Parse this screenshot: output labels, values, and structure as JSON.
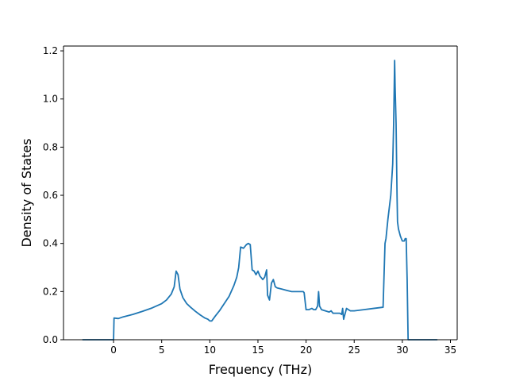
{
  "chart_data": {
    "type": "line",
    "title": "",
    "xlabel": "Frequency (THz)",
    "ylabel": "Density of States",
    "xlim": [
      -5.2,
      35.7
    ],
    "ylim": [
      0,
      1.22
    ],
    "x_ticks": [
      0,
      5,
      10,
      15,
      20,
      25,
      30,
      35
    ],
    "x_tick_labels": [
      "0",
      "5",
      "10",
      "15",
      "20",
      "25",
      "30",
      "35"
    ],
    "y_ticks": [
      0.0,
      0.2,
      0.4,
      0.6,
      0.8,
      1.0,
      1.2
    ],
    "y_tick_labels": [
      "0.0",
      "0.2",
      "0.4",
      "0.6",
      "0.8",
      "1.0",
      "1.2"
    ],
    "grid": false,
    "legend": "none",
    "line_color": "#1f77b4",
    "series": [
      {
        "x": [
          -3.2,
          0.0,
          0.05,
          0.5,
          1.0,
          2.0,
          3.0,
          4.0,
          5.0,
          5.5,
          6.0,
          6.3,
          6.5,
          6.7,
          6.9,
          7.2,
          7.6,
          8.0,
          8.5,
          9.0,
          9.5,
          9.8,
          10.0,
          10.2,
          10.6,
          11.0,
          11.5,
          12.0,
          12.5,
          12.8,
          13.0,
          13.2,
          13.5,
          13.8,
          14.0,
          14.2,
          14.4,
          14.6,
          14.8,
          15.0,
          15.2,
          15.5,
          15.7,
          15.9,
          16.0,
          16.2,
          16.4,
          16.6,
          16.8,
          17.0,
          17.5,
          18.0,
          18.5,
          19.0,
          19.5,
          19.7,
          19.8,
          20.0,
          20.3,
          20.6,
          20.8,
          21.0,
          21.2,
          21.3,
          21.4,
          21.6,
          22.0,
          22.4,
          22.6,
          22.8,
          23.0,
          23.2,
          23.5,
          23.7,
          23.8,
          23.9,
          24.0,
          24.2,
          24.4,
          24.6,
          24.8,
          25.0,
          26.0,
          27.0,
          28.0,
          28.2,
          28.3,
          28.5,
          28.8,
          29.0,
          29.1,
          29.2,
          29.25,
          29.35,
          29.45,
          29.5,
          29.6,
          29.8,
          30.0,
          30.2,
          30.3,
          30.4,
          30.5,
          30.6,
          31.0,
          33.6
        ],
        "y": [
          0.0,
          0.0,
          0.09,
          0.088,
          0.095,
          0.105,
          0.118,
          0.132,
          0.15,
          0.165,
          0.19,
          0.22,
          0.285,
          0.27,
          0.21,
          0.175,
          0.15,
          0.135,
          0.118,
          0.103,
          0.09,
          0.085,
          0.078,
          0.078,
          0.1,
          0.12,
          0.15,
          0.18,
          0.225,
          0.26,
          0.3,
          0.385,
          0.38,
          0.395,
          0.4,
          0.395,
          0.29,
          0.285,
          0.27,
          0.285,
          0.265,
          0.25,
          0.26,
          0.29,
          0.185,
          0.165,
          0.235,
          0.25,
          0.22,
          0.215,
          0.21,
          0.205,
          0.2,
          0.2,
          0.2,
          0.2,
          0.195,
          0.125,
          0.125,
          0.13,
          0.125,
          0.125,
          0.14,
          0.2,
          0.14,
          0.125,
          0.12,
          0.115,
          0.12,
          0.11,
          0.11,
          0.11,
          0.11,
          0.105,
          0.13,
          0.085,
          0.1,
          0.13,
          0.125,
          0.12,
          0.12,
          0.12,
          0.125,
          0.13,
          0.135,
          0.4,
          0.42,
          0.5,
          0.6,
          0.73,
          0.9,
          1.16,
          1.05,
          0.9,
          0.6,
          0.49,
          0.46,
          0.43,
          0.41,
          0.41,
          0.42,
          0.42,
          0.25,
          0.0,
          0.0,
          0.0
        ]
      }
    ]
  }
}
